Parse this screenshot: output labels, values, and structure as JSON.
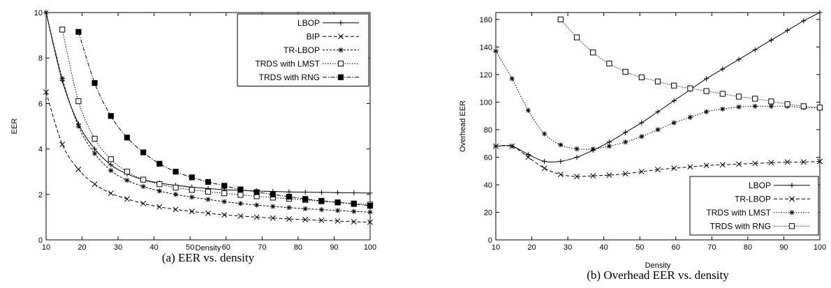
{
  "chart_data": [
    {
      "type": "line",
      "caption": "(a) EER vs. density",
      "xlabel": "Density",
      "ylabel": "EER",
      "xlim": [
        10,
        100
      ],
      "ylim": [
        0,
        10
      ],
      "xticks": [
        10,
        20,
        30,
        40,
        50,
        60,
        70,
        80,
        90,
        100
      ],
      "yticks": [
        0,
        2,
        4,
        6,
        8,
        10
      ],
      "grid": false,
      "legend_position": "top-right",
      "series": [
        {
          "name": "LBOP",
          "marker": "plus",
          "dash": "solid",
          "x": [
            10,
            14.5,
            19,
            23.5,
            28,
            32.5,
            37,
            41.5,
            46,
            50.5,
            55,
            59.5,
            64,
            68.5,
            73,
            77.5,
            82,
            86.5,
            91,
            95.5,
            100
          ],
          "y": [
            10.0,
            7.0,
            5.1,
            4.0,
            3.3,
            2.9,
            2.65,
            2.5,
            2.4,
            2.32,
            2.26,
            2.21,
            2.18,
            2.15,
            2.13,
            2.11,
            2.1,
            2.09,
            2.08,
            2.07,
            2.06
          ]
        },
        {
          "name": "BIP",
          "marker": "x",
          "dash": "dashed",
          "x": [
            10,
            14.5,
            19,
            23.5,
            28,
            32.5,
            37,
            41.5,
            46,
            50.5,
            55,
            59.5,
            64,
            68.5,
            73,
            77.5,
            82,
            86.5,
            91,
            95.5,
            100
          ],
          "y": [
            6.5,
            4.2,
            3.1,
            2.45,
            2.05,
            1.8,
            1.6,
            1.45,
            1.34,
            1.25,
            1.17,
            1.1,
            1.05,
            1.0,
            0.96,
            0.92,
            0.89,
            0.86,
            0.83,
            0.8,
            0.78
          ]
        },
        {
          "name": "TR-LBOP",
          "marker": "asterisk",
          "dash": "shortdash",
          "x": [
            10,
            14.5,
            19,
            23.5,
            28,
            32.5,
            37,
            41.5,
            46,
            50.5,
            55,
            59.5,
            64,
            68.5,
            73,
            77.5,
            82,
            86.5,
            91,
            95.5,
            100
          ],
          "y": [
            10.0,
            7.1,
            5.0,
            3.8,
            3.05,
            2.62,
            2.35,
            2.15,
            2.0,
            1.88,
            1.78,
            1.68,
            1.6,
            1.53,
            1.47,
            1.42,
            1.37,
            1.33,
            1.29,
            1.25,
            1.22
          ]
        },
        {
          "name": "TRDS with LMST",
          "marker": "square",
          "dash": "dotted",
          "x": [
            14.5,
            19,
            23.5,
            28,
            32.5,
            37,
            41.5,
            46,
            50.5,
            55,
            59.5,
            64,
            68.5,
            73,
            77.5,
            82,
            86.5,
            91,
            95.5,
            100
          ],
          "y": [
            9.25,
            6.1,
            4.45,
            3.55,
            3.0,
            2.65,
            2.45,
            2.3,
            2.2,
            2.12,
            2.05,
            1.98,
            1.92,
            1.86,
            1.81,
            1.76,
            1.7,
            1.65,
            1.6,
            1.55
          ]
        },
        {
          "name": "TRDS with RNG",
          "marker": "filled-square",
          "dash": "dashdot",
          "x": [
            19,
            23.5,
            28,
            32.5,
            37,
            41.5,
            46,
            50.5,
            55,
            59.5,
            64,
            68.5,
            73,
            77.5,
            82,
            86.5,
            91,
            95.5,
            100
          ],
          "y": [
            9.15,
            6.9,
            5.45,
            4.5,
            3.85,
            3.35,
            3.0,
            2.75,
            2.55,
            2.38,
            2.22,
            2.1,
            2.0,
            1.9,
            1.8,
            1.72,
            1.65,
            1.58,
            1.5
          ]
        }
      ]
    },
    {
      "type": "line",
      "caption": "(b) Overhead EER vs. density",
      "xlabel": "Density",
      "ylabel": "Overhead EER",
      "xlim": [
        10,
        100
      ],
      "ylim": [
        0,
        165
      ],
      "xticks": [
        10,
        20,
        30,
        40,
        50,
        60,
        70,
        80,
        90,
        100
      ],
      "yticks": [
        0,
        20,
        40,
        60,
        80,
        100,
        120,
        140,
        160
      ],
      "grid": false,
      "legend_position": "bottom-right",
      "series": [
        {
          "name": "LBOP",
          "marker": "plus",
          "dash": "solid",
          "x": [
            10,
            14.5,
            19,
            23.5,
            28,
            32.5,
            37,
            41.5,
            46,
            50.5,
            55,
            59.5,
            64,
            68.5,
            73,
            77.5,
            82,
            86.5,
            91,
            95.5,
            100
          ],
          "y": [
            68,
            68,
            62,
            57,
            57,
            60,
            65,
            71,
            78,
            85,
            93,
            101,
            109,
            117,
            124,
            131,
            138,
            145,
            152,
            159,
            165
          ]
        },
        {
          "name": "TR-LBOP",
          "marker": "x",
          "dash": "dashed",
          "x": [
            10,
            14.5,
            19,
            23.5,
            28,
            32.5,
            37,
            41.5,
            46,
            50.5,
            55,
            59.5,
            64,
            68.5,
            73,
            77.5,
            82,
            86.5,
            91,
            95.5,
            100
          ],
          "y": [
            68,
            68,
            60,
            52,
            47.5,
            46,
            46.5,
            47,
            48,
            49.5,
            51,
            52,
            53,
            54,
            54.5,
            55,
            55.5,
            56,
            56.5,
            56.5,
            57
          ]
        },
        {
          "name": "TRDS with LMST",
          "marker": "asterisk",
          "dash": "dotted",
          "x": [
            10,
            14.5,
            19,
            23.5,
            28,
            32.5,
            37,
            41.5,
            46,
            50.5,
            55,
            59.5,
            64,
            68.5,
            73,
            77.5,
            82,
            86.5,
            91,
            95.5,
            100
          ],
          "y": [
            137,
            117,
            94,
            77,
            69,
            66,
            66,
            68,
            71,
            75,
            80,
            85,
            89,
            93,
            95,
            96.5,
            97,
            97,
            97,
            96,
            96
          ]
        },
        {
          "name": "TRDS with RNG",
          "marker": "square",
          "dash": "fine-dotted",
          "x": [
            28,
            32.5,
            37,
            41.5,
            46,
            50.5,
            55,
            59.5,
            64,
            68.5,
            73,
            77.5,
            82,
            86.5,
            91,
            95.5,
            100
          ],
          "y": [
            160,
            147,
            136,
            128,
            122,
            118,
            115,
            112,
            110,
            108,
            106,
            104,
            102.5,
            100.5,
            98.5,
            97,
            96
          ]
        }
      ]
    }
  ]
}
